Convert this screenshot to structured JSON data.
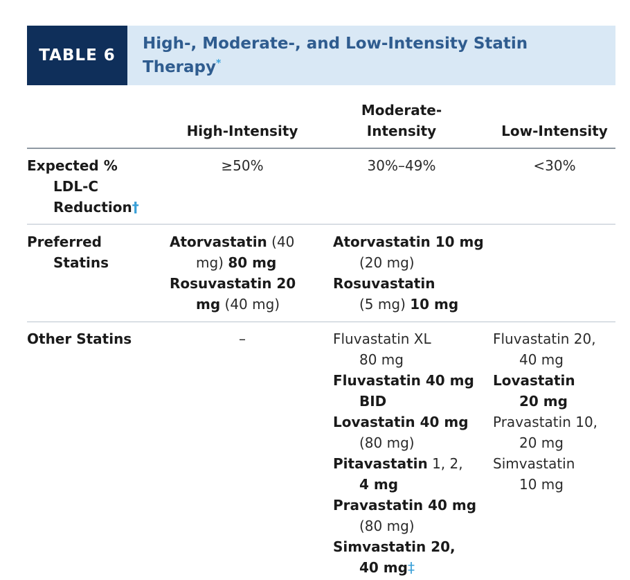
{
  "table": {
    "tag": "TABLE 6",
    "title": "High-, Moderate-, and Low-Intensity Statin Therapy",
    "title_mark": "*"
  },
  "columns": {
    "high": "High-Intensity",
    "moderate_line1": "Moderate-",
    "moderate_line2": "Intensity",
    "low": "Low-Intensity"
  },
  "rows": {
    "expected": {
      "label_line1": "Expected %",
      "label_line2": "LDL-C",
      "label_line3": "Reduction",
      "label_mark": "†",
      "high": "≥50%",
      "moderate": "30%–49%",
      "low": "<30%"
    },
    "preferred": {
      "label_line1": "Preferred",
      "label_line2": "Statins",
      "high": {
        "atorva_name": "Atorvastatin",
        "atorva_paren1": " (40",
        "atorva_paren2": "mg) ",
        "atorva_dose": "80 mg",
        "rosuva_name": "Rosuvastatin 20",
        "rosuva_dose": "mg",
        "rosuva_paren": " (40 mg)"
      },
      "moderate": {
        "atorva_name": "Atorvastatin 10 mg",
        "atorva_paren": "(20 mg)",
        "rosuva_name": "Rosuvastatin",
        "rosuva_paren": "(5 mg) ",
        "rosuva_dose": "10 mg"
      }
    },
    "other": {
      "label": "Other Statins",
      "high": "–",
      "moderate": {
        "fluva_xl_1": "Fluvastatin XL",
        "fluva_xl_2": "80 mg",
        "fluva_1": "Fluvastatin 40 mg",
        "fluva_2": "BID",
        "lova_1": "Lovastatin 40 mg",
        "lova_2": "(80 mg)",
        "pita_name": "Pitavastatin",
        "pita_doses": " 1, 2,",
        "pita_2": "4 mg",
        "prava_1": "Pravastatin 40 mg",
        "prava_2": "(80 mg)",
        "simva_1": "Simvastatin 20,",
        "simva_2": "40 mg",
        "simva_mark": "‡"
      },
      "low": {
        "fluva_1": "Fluvastatin 20,",
        "fluva_2": "40 mg",
        "lova_1": "Lovastatin",
        "lova_2": "20 mg",
        "prava_1": "Pravastatin 10,",
        "prava_2": "20 mg",
        "simva_1": "Simvastatin",
        "simva_2": "10 mg"
      }
    }
  },
  "colors": {
    "header_band": "#d9e8f5",
    "tag_bg": "#0f2f5a",
    "title_text": "#2f5c8f",
    "footnote_mark": "#3aa0d8"
  }
}
